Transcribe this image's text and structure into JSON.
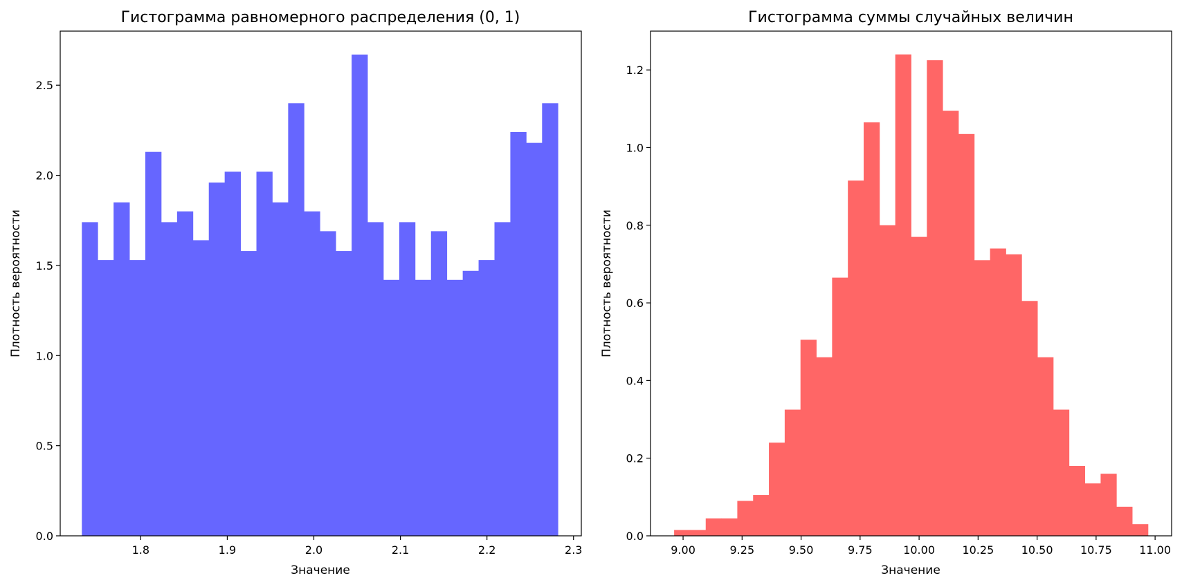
{
  "chart_data": [
    {
      "type": "bar",
      "title": "Гистограмма равномерного распределения (0, 1)",
      "xlabel": "Значение",
      "ylabel": "Плотность вероятности",
      "xlim": [
        1.707,
        2.309
      ],
      "ylim": [
        0,
        2.8
      ],
      "xticks": [
        1.8,
        1.9,
        2.0,
        2.1,
        2.2,
        2.3
      ],
      "xtick_labels": [
        "1.8",
        "1.9",
        "2.0",
        "2.1",
        "2.2",
        "2.3"
      ],
      "yticks": [
        0,
        0.5,
        1.0,
        1.5,
        2.0,
        2.5
      ],
      "ytick_labels": [
        "0.0",
        "0.5",
        "1.0",
        "1.5",
        "2.0",
        "2.5"
      ],
      "bin_start": 1.732,
      "bin_end": 2.282,
      "bar_color": "#6666ff",
      "grid": false,
      "values": [
        1.74,
        1.53,
        1.85,
        1.53,
        2.13,
        1.74,
        1.8,
        1.64,
        1.96,
        2.02,
        1.58,
        2.02,
        1.85,
        2.4,
        1.8,
        1.69,
        1.58,
        2.67,
        1.74,
        1.42,
        1.74,
        1.42,
        1.69,
        1.42,
        1.47,
        1.53,
        1.74,
        2.24,
        2.18,
        2.4
      ]
    },
    {
      "type": "bar",
      "title": "Гистограмма суммы случайных величин",
      "xlabel": "Значение",
      "ylabel": "Плотность вероятности",
      "xlim": [
        8.862,
        11.07
      ],
      "ylim": [
        0,
        1.3
      ],
      "xticks": [
        9.0,
        9.25,
        9.5,
        9.75,
        10.0,
        10.25,
        10.5,
        10.75,
        11.0
      ],
      "xtick_labels": [
        "9.00",
        "9.25",
        "9.50",
        "9.75",
        "10.00",
        "10.25",
        "10.50",
        "10.75",
        "11.00"
      ],
      "yticks": [
        0,
        0.2,
        0.4,
        0.6,
        0.8,
        1.0,
        1.2
      ],
      "ytick_labels": [
        "0.0",
        "0.2",
        "0.4",
        "0.6",
        "0.8",
        "1.0",
        "1.2"
      ],
      "bin_start": 8.962,
      "bin_end": 10.97,
      "bar_color": "#ff6666",
      "grid": false,
      "values": [
        0.015,
        0.015,
        0.045,
        0.045,
        0.09,
        0.105,
        0.24,
        0.325,
        0.505,
        0.46,
        0.665,
        0.915,
        1.065,
        0.8,
        1.24,
        0.77,
        1.225,
        1.095,
        1.035,
        0.71,
        0.74,
        0.725,
        0.605,
        0.46,
        0.325,
        0.18,
        0.135,
        0.16,
        0.075,
        0.03
      ]
    }
  ]
}
